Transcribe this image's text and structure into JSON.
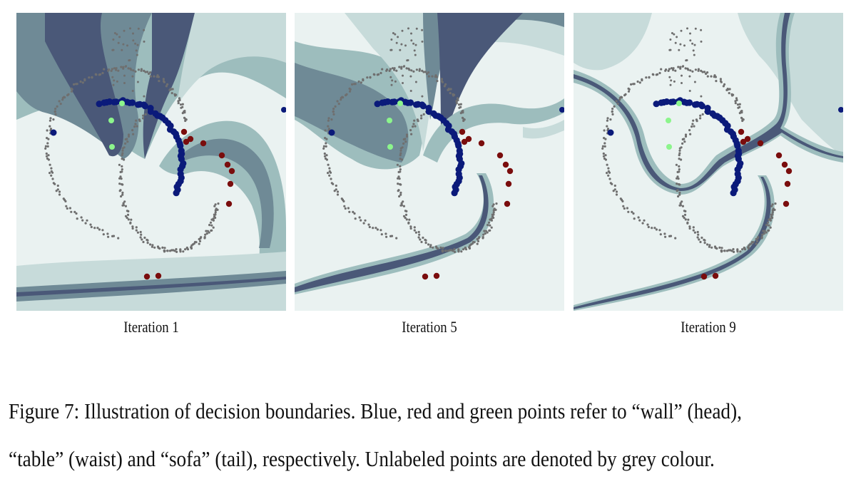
{
  "figure": {
    "subfigures": [
      {
        "label": "Iteration 1"
      },
      {
        "label": "Iteration 5"
      },
      {
        "label": "Iteration 9"
      }
    ],
    "caption_line1": "Figure 7: Illustration of decision boundaries. Blue, red and green points refer to “wall” (head),",
    "caption_line2": "“table” (waist) and “sofa” (tail), respectively. Unlabeled points are denoted by grey colour."
  },
  "colors": {
    "blue": "#0b1a7a",
    "red": "#7a0d0d",
    "green": "#8cf58c",
    "grey": "#6f6f6f",
    "bg_light": "#eaf2f1",
    "band_1": "#c7dbda",
    "band_2": "#9dbdbd",
    "band_3": "#6f8a96",
    "band_4": "#4a5878"
  }
}
